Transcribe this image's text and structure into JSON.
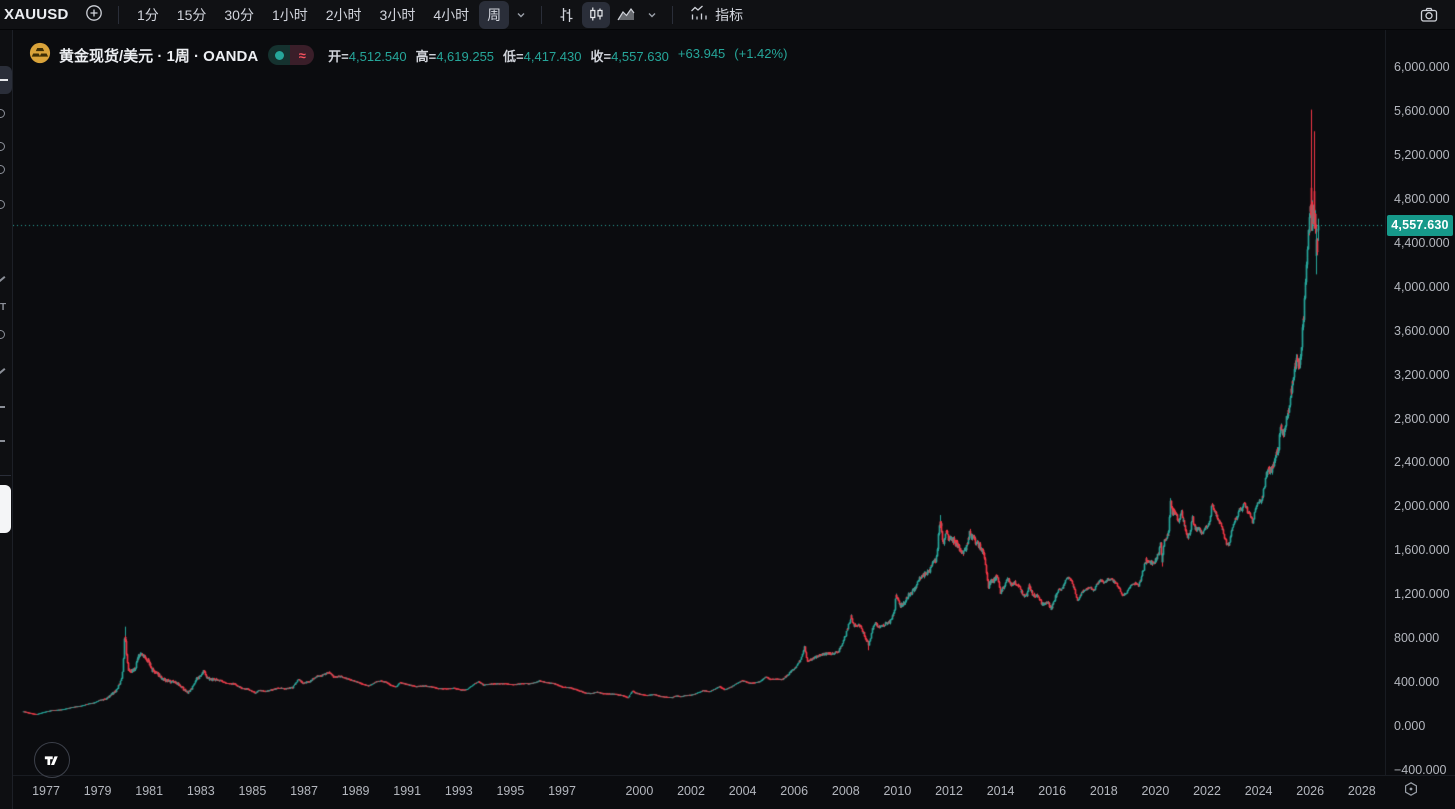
{
  "toolbar": {
    "symbol": "XAUUSD",
    "timeframes": [
      "1分",
      "15分",
      "30分",
      "1小时",
      "2小时",
      "3小时",
      "4小时",
      "周"
    ],
    "timeframe_names": [
      "1min",
      "15min",
      "30min",
      "1h",
      "2h",
      "3h",
      "4h",
      "week"
    ],
    "selected_timeframe": "周",
    "indicators_label": "指标"
  },
  "legend": {
    "title": "黄金现货/美元 · 1周 · OANDA",
    "ohlc": {
      "open_label": "开=",
      "open": "4,512.540",
      "high_label": "高=",
      "high": "4,619.255",
      "low_label": "低=",
      "low": "4,417.430",
      "close_label": "收=",
      "close": "4,557.630",
      "change": "+63.945",
      "change_pct": "(+1.42%)"
    }
  },
  "price_axis": {
    "labels": [
      "6,000.000",
      "5,600.000",
      "5,200.000",
      "4,800.000",
      "4,400.000",
      "4,000.000",
      "3,600.000",
      "3,200.000",
      "2,800.000",
      "2,400.000",
      "2,000.000",
      "1,600.000",
      "1,200.000",
      "800.000",
      "400.000",
      "0.000",
      "-400.000"
    ],
    "current_price_label": "4,557.630"
  },
  "time_axis": {
    "labels": [
      "1977",
      "1979",
      "1981",
      "1983",
      "1985",
      "1987",
      "1989",
      "1991",
      "1993",
      "1995",
      "1997",
      "2000",
      "2002",
      "2004",
      "2006",
      "2008",
      "2010",
      "2012",
      "2014",
      "2016",
      "2018",
      "2020",
      "2022",
      "2024",
      "2026",
      "2028"
    ]
  },
  "colors": {
    "up": "#26a69a",
    "down": "#f23645",
    "price_line": "#26a69a",
    "badge_bg": "#16998a",
    "coin": "#d9a33a"
  },
  "chart_data": {
    "type": "candlestick",
    "interval": "1W",
    "symbol": "XAUUSD",
    "title": "黄金现货/美元 · 1周 · OANDA",
    "x_range_years": [
      1976.12,
      2026.3
    ],
    "visible_price_range": [
      -400,
      6000
    ],
    "price_grid_step": 400,
    "grid": "off",
    "last_candle": {
      "open": 4512.54,
      "high": 4619.255,
      "low": 4417.43,
      "close": 4557.63,
      "change": 63.945,
      "change_pct": 1.42
    },
    "current_price": 4557.63,
    "anchors": [
      [
        1976.12,
        130
      ],
      [
        1976.45,
        112
      ],
      [
        1976.62,
        104
      ],
      [
        1976.9,
        125
      ],
      [
        1977.2,
        140
      ],
      [
        1977.6,
        147
      ],
      [
        1978.0,
        170
      ],
      [
        1978.35,
        182
      ],
      [
        1978.6,
        200
      ],
      [
        1978.85,
        210
      ],
      [
        1979.05,
        233
      ],
      [
        1979.3,
        245
      ],
      [
        1979.55,
        290
      ],
      [
        1979.75,
        335
      ],
      [
        1979.9,
        420
      ],
      [
        1979.98,
        550
      ],
      [
        1980.04,
        835
      ],
      [
        1980.1,
        680
      ],
      [
        1980.18,
        520
      ],
      [
        1980.3,
        495
      ],
      [
        1980.45,
        525
      ],
      [
        1980.55,
        625
      ],
      [
        1980.68,
        670
      ],
      [
        1980.8,
        640
      ],
      [
        1980.95,
        600
      ],
      [
        1981.1,
        510
      ],
      [
        1981.3,
        480
      ],
      [
        1981.5,
        430
      ],
      [
        1981.7,
        410
      ],
      [
        1981.95,
        400
      ],
      [
        1982.15,
        375
      ],
      [
        1982.35,
        330
      ],
      [
        1982.5,
        305
      ],
      [
        1982.65,
        340
      ],
      [
        1982.8,
        420
      ],
      [
        1982.95,
        450
      ],
      [
        1983.1,
        500
      ],
      [
        1983.25,
        430
      ],
      [
        1983.5,
        420
      ],
      [
        1983.75,
        415
      ],
      [
        1984.0,
        385
      ],
      [
        1984.3,
        385
      ],
      [
        1984.55,
        345
      ],
      [
        1984.8,
        335
      ],
      [
        1985.1,
        300
      ],
      [
        1985.25,
        325
      ],
      [
        1985.5,
        315
      ],
      [
        1985.75,
        330
      ],
      [
        1986.0,
        345
      ],
      [
        1986.3,
        340
      ],
      [
        1986.55,
        350
      ],
      [
        1986.75,
        425
      ],
      [
        1986.95,
        390
      ],
      [
        1987.2,
        405
      ],
      [
        1987.45,
        450
      ],
      [
        1987.7,
        460
      ],
      [
        1987.95,
        490
      ],
      [
        1988.15,
        445
      ],
      [
        1988.4,
        450
      ],
      [
        1988.6,
        435
      ],
      [
        1988.85,
        415
      ],
      [
        1989.1,
        395
      ],
      [
        1989.3,
        380
      ],
      [
        1989.5,
        365
      ],
      [
        1989.75,
        400
      ],
      [
        1989.95,
        410
      ],
      [
        1990.15,
        400
      ],
      [
        1990.35,
        370
      ],
      [
        1990.55,
        355
      ],
      [
        1990.7,
        395
      ],
      [
        1990.85,
        385
      ],
      [
        1991.05,
        375
      ],
      [
        1991.3,
        358
      ],
      [
        1991.6,
        365
      ],
      [
        1991.9,
        358
      ],
      [
        1992.2,
        340
      ],
      [
        1992.55,
        338
      ],
      [
        1992.8,
        345
      ],
      [
        1993.05,
        328
      ],
      [
        1993.3,
        330
      ],
      [
        1993.55,
        378
      ],
      [
        1993.75,
        405
      ],
      [
        1993.95,
        372
      ],
      [
        1994.2,
        382
      ],
      [
        1994.5,
        385
      ],
      [
        1994.8,
        383
      ],
      [
        1995.1,
        375
      ],
      [
        1995.4,
        385
      ],
      [
        1995.7,
        384
      ],
      [
        1996.0,
        400
      ],
      [
        1996.12,
        412
      ],
      [
        1996.4,
        395
      ],
      [
        1996.7,
        385
      ],
      [
        1997.0,
        355
      ],
      [
        1997.3,
        348
      ],
      [
        1997.6,
        325
      ],
      [
        1997.9,
        300
      ],
      [
        1998.1,
        295
      ],
      [
        1998.35,
        308
      ],
      [
        1998.6,
        293
      ],
      [
        1998.85,
        292
      ],
      [
        1999.1,
        287
      ],
      [
        1999.35,
        275
      ],
      [
        1999.55,
        256
      ],
      [
        1999.72,
        320
      ],
      [
        1999.85,
        300
      ],
      [
        2000.05,
        288
      ],
      [
        2000.3,
        278
      ],
      [
        2000.55,
        288
      ],
      [
        2000.8,
        268
      ],
      [
        2001.05,
        262
      ],
      [
        2001.25,
        258
      ],
      [
        2001.42,
        275
      ],
      [
        2001.6,
        267
      ],
      [
        2001.8,
        278
      ],
      [
        2002.0,
        280
      ],
      [
        2002.25,
        302
      ],
      [
        2002.45,
        322
      ],
      [
        2002.7,
        312
      ],
      [
        2002.95,
        342
      ],
      [
        2003.1,
        360
      ],
      [
        2003.3,
        330
      ],
      [
        2003.55,
        355
      ],
      [
        2003.75,
        385
      ],
      [
        2003.95,
        412
      ],
      [
        2004.1,
        405
      ],
      [
        2004.3,
        388
      ],
      [
        2004.5,
        395
      ],
      [
        2004.7,
        410
      ],
      [
        2004.9,
        448
      ],
      [
        2005.05,
        425
      ],
      [
        2005.25,
        428
      ],
      [
        2005.5,
        422
      ],
      [
        2005.7,
        460
      ],
      [
        2005.95,
        515
      ],
      [
        2006.1,
        555
      ],
      [
        2006.3,
        645
      ],
      [
        2006.38,
        715
      ],
      [
        2006.5,
        590
      ],
      [
        2006.7,
        615
      ],
      [
        2006.9,
        635
      ],
      [
        2007.1,
        655
      ],
      [
        2007.3,
        660
      ],
      [
        2007.5,
        655
      ],
      [
        2007.7,
        680
      ],
      [
        2007.85,
        745
      ],
      [
        2008.0,
        850
      ],
      [
        2008.1,
        925
      ],
      [
        2008.2,
        1000
      ],
      [
        2008.3,
        915
      ],
      [
        2008.5,
        925
      ],
      [
        2008.65,
        860
      ],
      [
        2008.78,
        790
      ],
      [
        2008.88,
        735
      ],
      [
        2009.0,
        865
      ],
      [
        2009.12,
        935
      ],
      [
        2009.3,
        895
      ],
      [
        2009.5,
        930
      ],
      [
        2009.7,
        950
      ],
      [
        2009.85,
        1045
      ],
      [
        2009.95,
        1195
      ],
      [
        2010.1,
        1095
      ],
      [
        2010.25,
        1115
      ],
      [
        2010.45,
        1205
      ],
      [
        2010.6,
        1230
      ],
      [
        2010.75,
        1290
      ],
      [
        2010.9,
        1365
      ],
      [
        2011.05,
        1380
      ],
      [
        2011.2,
        1405
      ],
      [
        2011.35,
        1480
      ],
      [
        2011.5,
        1525
      ],
      [
        2011.6,
        1800
      ],
      [
        2011.65,
        1870
      ],
      [
        2011.72,
        1780
      ],
      [
        2011.78,
        1640
      ],
      [
        2011.87,
        1780
      ],
      [
        2011.95,
        1720
      ],
      [
        2012.1,
        1700
      ],
      [
        2012.2,
        1680
      ],
      [
        2012.35,
        1640
      ],
      [
        2012.5,
        1580
      ],
      [
        2012.65,
        1605
      ],
      [
        2012.78,
        1760
      ],
      [
        2012.95,
        1700
      ],
      [
        2013.1,
        1665
      ],
      [
        2013.25,
        1600
      ],
      [
        2013.35,
        1560
      ],
      [
        2013.45,
        1400
      ],
      [
        2013.52,
        1270
      ],
      [
        2013.62,
        1320
      ],
      [
        2013.75,
        1330
      ],
      [
        2013.85,
        1375
      ],
      [
        2013.98,
        1210
      ],
      [
        2014.1,
        1260
      ],
      [
        2014.25,
        1335
      ],
      [
        2014.4,
        1290
      ],
      [
        2014.55,
        1305
      ],
      [
        2014.7,
        1265
      ],
      [
        2014.85,
        1190
      ],
      [
        2015.0,
        1190
      ],
      [
        2015.1,
        1280
      ],
      [
        2015.25,
        1190
      ],
      [
        2015.45,
        1190
      ],
      [
        2015.6,
        1105
      ],
      [
        2015.8,
        1135
      ],
      [
        2015.95,
        1062
      ],
      [
        2016.1,
        1170
      ],
      [
        2016.25,
        1235
      ],
      [
        2016.4,
        1260
      ],
      [
        2016.55,
        1355
      ],
      [
        2016.7,
        1330
      ],
      [
        2016.85,
        1250
      ],
      [
        2016.98,
        1135
      ],
      [
        2017.15,
        1220
      ],
      [
        2017.3,
        1250
      ],
      [
        2017.45,
        1265
      ],
      [
        2017.6,
        1230
      ],
      [
        2017.72,
        1290
      ],
      [
        2017.85,
        1330
      ],
      [
        2018.0,
        1305
      ],
      [
        2018.15,
        1340
      ],
      [
        2018.3,
        1330
      ],
      [
        2018.45,
        1300
      ],
      [
        2018.6,
        1250
      ],
      [
        2018.72,
        1190
      ],
      [
        2018.88,
        1210
      ],
      [
        2019.05,
        1285
      ],
      [
        2019.2,
        1300
      ],
      [
        2019.35,
        1280
      ],
      [
        2019.5,
        1410
      ],
      [
        2019.62,
        1510
      ],
      [
        2019.75,
        1500
      ],
      [
        2019.9,
        1470
      ],
      [
        2020.0,
        1520
      ],
      [
        2020.1,
        1575
      ],
      [
        2020.18,
        1670
      ],
      [
        2020.23,
        1495
      ],
      [
        2020.35,
        1685
      ],
      [
        2020.5,
        1755
      ],
      [
        2020.58,
        2030
      ],
      [
        2020.65,
        1955
      ],
      [
        2020.75,
        1935
      ],
      [
        2020.88,
        1870
      ],
      [
        2021.0,
        1945
      ],
      [
        2021.1,
        1840
      ],
      [
        2021.2,
        1725
      ],
      [
        2021.32,
        1740
      ],
      [
        2021.42,
        1890
      ],
      [
        2021.52,
        1790
      ],
      [
        2021.65,
        1795
      ],
      [
        2021.78,
        1755
      ],
      [
        2021.9,
        1790
      ],
      [
        2022.0,
        1825
      ],
      [
        2022.1,
        1855
      ],
      [
        2022.18,
        2030
      ],
      [
        2022.3,
        1945
      ],
      [
        2022.42,
        1885
      ],
      [
        2022.55,
        1815
      ],
      [
        2022.65,
        1740
      ],
      [
        2022.75,
        1650
      ],
      [
        2022.85,
        1660
      ],
      [
        2022.95,
        1780
      ],
      [
        2023.05,
        1870
      ],
      [
        2023.15,
        1900
      ],
      [
        2023.25,
        1985
      ],
      [
        2023.35,
        1970
      ],
      [
        2023.42,
        2030
      ],
      [
        2023.55,
        1955
      ],
      [
        2023.68,
        1915
      ],
      [
        2023.78,
        1850
      ],
      [
        2023.88,
        1985
      ],
      [
        2023.98,
        2045
      ],
      [
        2024.1,
        2040
      ],
      [
        2024.2,
        2160
      ],
      [
        2024.32,
        2320
      ],
      [
        2024.45,
        2330
      ],
      [
        2024.55,
        2355
      ],
      [
        2024.65,
        2450
      ],
      [
        2024.75,
        2520
      ],
      [
        2024.85,
        2730
      ],
      [
        2024.95,
        2640
      ],
      [
        2025.05,
        2760
      ],
      [
        2025.15,
        2900
      ],
      [
        2025.25,
        3060
      ],
      [
        2025.35,
        3240
      ],
      [
        2025.45,
        3330
      ],
      [
        2025.55,
        3300
      ],
      [
        2025.65,
        3400
      ],
      [
        2025.72,
        3680
      ],
      [
        2025.8,
        4020
      ],
      [
        2025.86,
        4250
      ],
      [
        2025.92,
        4480
      ],
      [
        2025.98,
        4650
      ],
      [
        2026.04,
        4820
      ],
      [
        2026.1,
        4620
      ],
      [
        2026.16,
        4700
      ],
      [
        2026.22,
        4480
      ],
      [
        2026.26,
        4280
      ],
      [
        2026.3,
        4520
      ]
    ],
    "events": [
      {
        "t": 1980.04,
        "high": 905
      },
      {
        "t": 2008.88,
        "low": 690
      },
      {
        "t": 2011.65,
        "high": 1921
      },
      {
        "t": 2020.23,
        "low": 1452
      },
      {
        "t": 2020.58,
        "high": 2075
      },
      {
        "t": 2026.05,
        "open": 4900,
        "close": 4510,
        "high": 5612
      },
      {
        "t": 2026.16,
        "open": 4870,
        "close": 4530,
        "high": 5415
      },
      {
        "t": 2026.24,
        "open": 4280,
        "close": 4430,
        "low": 4112
      }
    ],
    "volatility_windows": [
      {
        "from": 1979.2,
        "to": 1983.6,
        "v": 0.04
      },
      {
        "from": 1983.6,
        "to": 1988.5,
        "v": 0.02
      },
      {
        "from": 2005.5,
        "to": 2013.9,
        "v": 0.02
      },
      {
        "from": 2013.9,
        "to": 2016.3,
        "v": 0.016
      },
      {
        "from": 2019.4,
        "to": 2021.6,
        "v": 0.016
      },
      {
        "from": 2024.3,
        "to": 2026.35,
        "v": 0.018
      }
    ],
    "default_volatility": 0.011
  }
}
